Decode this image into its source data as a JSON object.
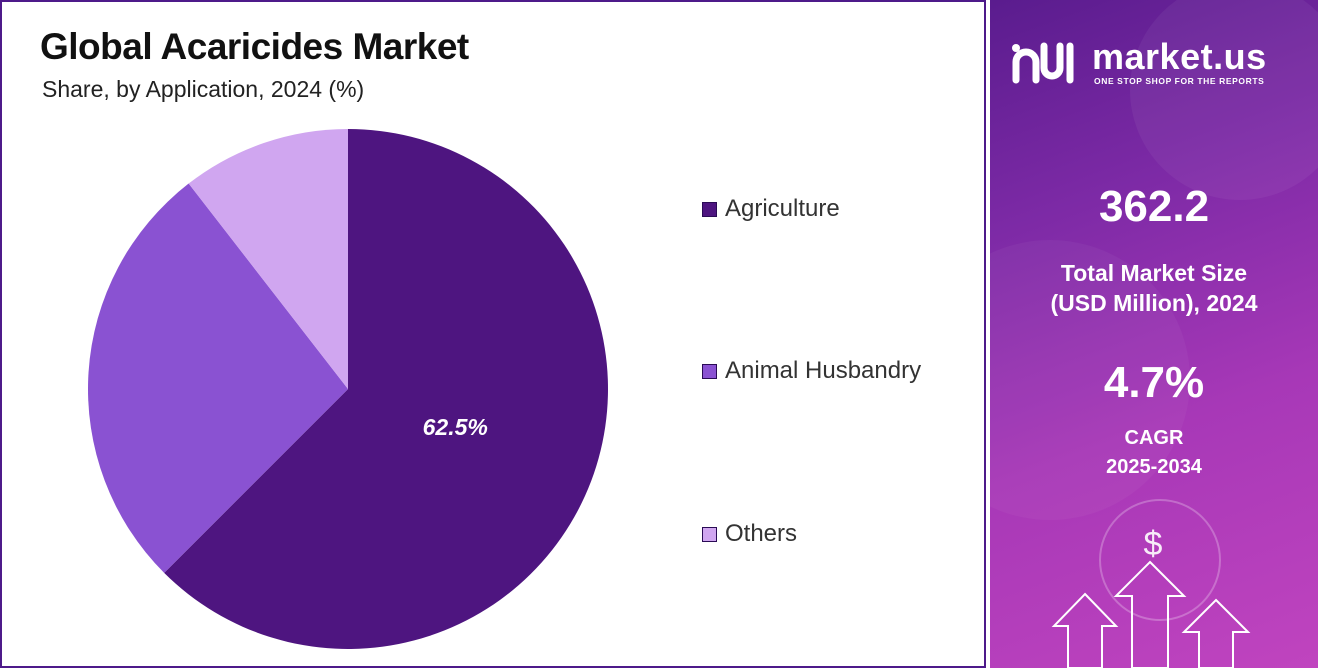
{
  "chart_data": {
    "type": "pie",
    "title": "Global Acaricides Market",
    "subtitle": "Share, by Application, 2024 (%)",
    "categories": [
      "Agriculture",
      "Animal Husbandry",
      "Others"
    ],
    "values": [
      62.5,
      27.0,
      10.5
    ],
    "colors": [
      "#4e1580",
      "#8a52d2",
      "#d0a6f0"
    ],
    "data_labels": [
      "62.5%",
      "",
      ""
    ],
    "legend_position": "right",
    "start_angle_deg": 0,
    "direction": "clockwise"
  },
  "sidebar": {
    "brand": {
      "name": "market.us",
      "tagline": "ONE STOP SHOP FOR THE REPORTS"
    },
    "market_size": {
      "value": "362.2",
      "label_line1": "Total Market Size",
      "label_line2": "(USD Million), 2024"
    },
    "cagr": {
      "value": "4.7%",
      "label_line1": "CAGR",
      "label_line2": "2025-2034"
    },
    "decor_icon": "dollar-growth-arrows-icon"
  }
}
